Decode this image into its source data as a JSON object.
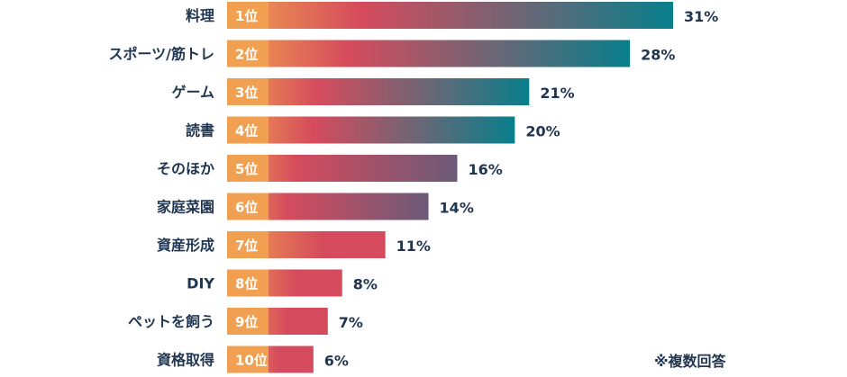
{
  "chart_data": {
    "type": "bar",
    "orientation": "horizontal",
    "categories": [
      "料理",
      "スポーツ/筋トレ",
      "ゲーム",
      "読書",
      "そのほか",
      "家庭菜園",
      "資産形成",
      "DIY",
      "ペットを飼う",
      "資格取得"
    ],
    "ranks": [
      "1位",
      "2位",
      "3位",
      "4位",
      "5位",
      "6位",
      "7位",
      "8位",
      "9位",
      "10位"
    ],
    "values": [
      31,
      28,
      21,
      20,
      16,
      14,
      11,
      8,
      7,
      6
    ],
    "value_labels": [
      "31%",
      "28%",
      "21%",
      "20%",
      "16%",
      "14%",
      "11%",
      "8%",
      "7%",
      "6%"
    ],
    "unit": "%",
    "xlim": [
      0,
      31
    ],
    "grid": false,
    "colors": {
      "rank_box": "#f0a050",
      "gradient_start": "#f2a24e",
      "gradient_mid": "#d54b5d",
      "gradient_end_long": "#087f8c",
      "gradient_end_mid": "#6a5a78",
      "text": "#1f3550"
    }
  },
  "footnote": "※複数回答"
}
